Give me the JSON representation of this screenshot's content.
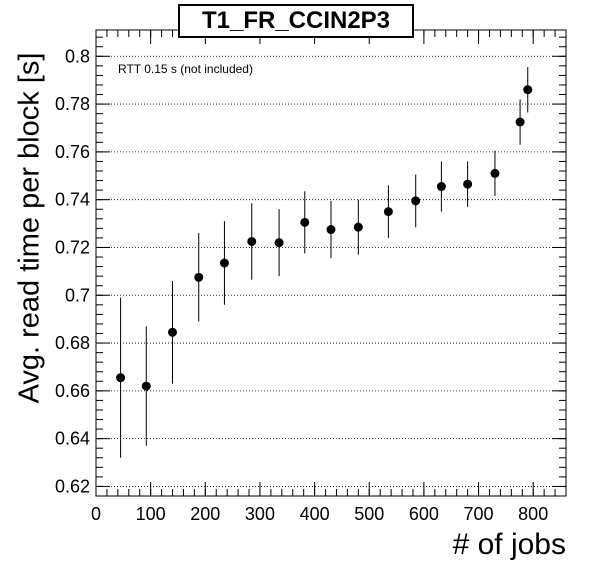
{
  "chart_data": {
    "type": "scatter",
    "title": "T1_FR_CCIN2P3",
    "annotation": "RTT 0.15 s (not included)",
    "xlabel": "# of jobs",
    "ylabel": "Avg. read time per block [s]",
    "xlim": [
      0,
      860
    ],
    "ylim": [
      0.616,
      0.811
    ],
    "xticks": [
      0,
      100,
      200,
      300,
      400,
      500,
      600,
      700,
      800
    ],
    "yticks": [
      0.62,
      0.64,
      0.66,
      0.68,
      0.7,
      0.72,
      0.74,
      0.76,
      0.78,
      0.8
    ],
    "ytick_labels": [
      "0.62",
      "0.64",
      "0.66",
      "0.68",
      "0.7",
      "0.72",
      "0.74",
      "0.76",
      "0.78",
      "0.8"
    ],
    "grid": "horizontal-dotted",
    "series": [
      {
        "points": [
          {
            "x": 45,
            "y": 0.6655,
            "err": 0.0335
          },
          {
            "x": 92,
            "y": 0.662,
            "err": 0.025
          },
          {
            "x": 140,
            "y": 0.6845,
            "err": 0.0215
          },
          {
            "x": 188,
            "y": 0.7075,
            "err": 0.0185
          },
          {
            "x": 235,
            "y": 0.7135,
            "err": 0.0175
          },
          {
            "x": 285,
            "y": 0.7225,
            "err": 0.016
          },
          {
            "x": 335,
            "y": 0.722,
            "err": 0.014
          },
          {
            "x": 382,
            "y": 0.7305,
            "err": 0.013
          },
          {
            "x": 430,
            "y": 0.7275,
            "err": 0.012
          },
          {
            "x": 480,
            "y": 0.7285,
            "err": 0.0115
          },
          {
            "x": 535,
            "y": 0.735,
            "err": 0.011
          },
          {
            "x": 585,
            "y": 0.7395,
            "err": 0.011
          },
          {
            "x": 632,
            "y": 0.7455,
            "err": 0.0105
          },
          {
            "x": 680,
            "y": 0.7465,
            "err": 0.0095
          },
          {
            "x": 730,
            "y": 0.751,
            "err": 0.0095
          },
          {
            "x": 776,
            "y": 0.7725,
            "err": 0.0095
          },
          {
            "x": 790,
            "y": 0.786,
            "err": 0.0095
          }
        ]
      }
    ]
  }
}
